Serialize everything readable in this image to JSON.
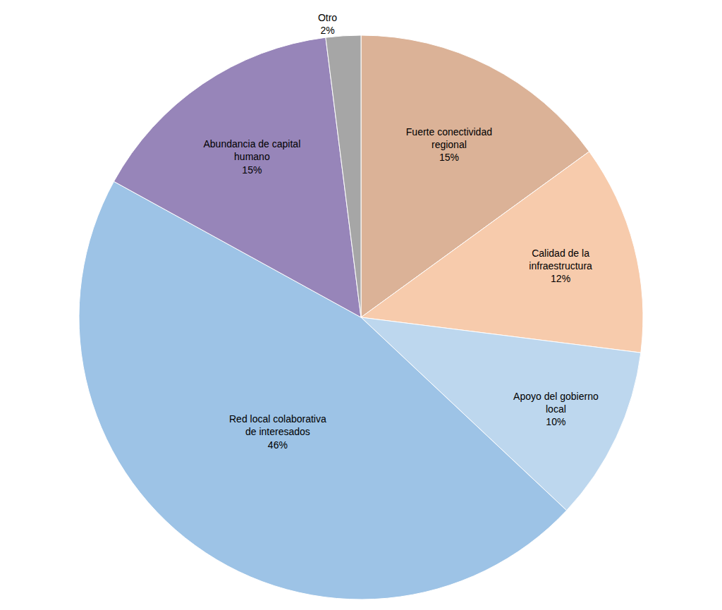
{
  "chart_data": {
    "type": "pie",
    "categories": [
      "Fuerte conectividad regional",
      "Calidad de la infraestructura",
      "Apoyo del gobierno local",
      "Red local colaborativa de interesados",
      "Abundancia de capital humano",
      "Otro"
    ],
    "values": [
      15,
      12,
      10,
      46,
      15,
      2
    ],
    "value_labels": [
      "15%",
      "12%",
      "10%",
      "46%",
      "15%",
      "2%"
    ],
    "colors": [
      "#dbb297",
      "#f7cbac",
      "#bdd7ee",
      "#9dc3e6",
      "#9785b9",
      "#a6a6a6"
    ],
    "data_labels": true
  }
}
